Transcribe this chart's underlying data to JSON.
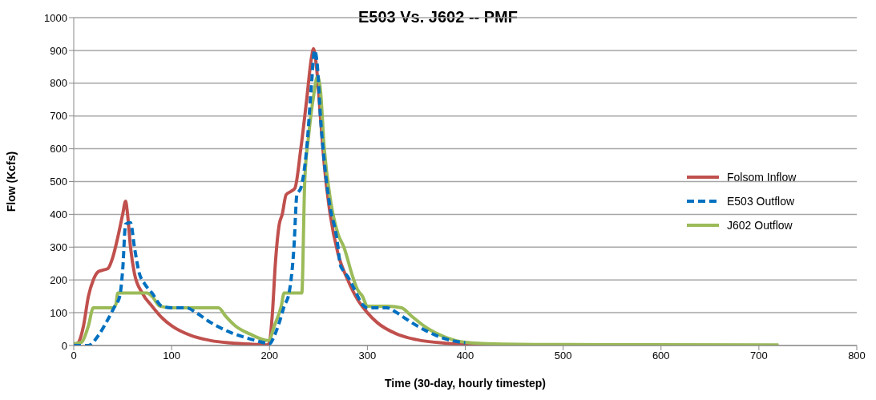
{
  "chart_data": {
    "type": "line",
    "title": "E503 Vs. J602 -- PMF",
    "xlabel": "Time (30-day, hourly timestep)",
    "ylabel": "Flow (Kcfs)",
    "xlim": [
      0,
      800
    ],
    "xticks": [
      0,
      100,
      200,
      300,
      400,
      500,
      600,
      700,
      800
    ],
    "ylim": [
      0,
      1000
    ],
    "yticks": [
      0,
      100,
      200,
      300,
      400,
      500,
      600,
      700,
      800,
      900,
      1000
    ],
    "grid": "y",
    "legend": "right",
    "marker": "none",
    "series": [
      {
        "name": "Folsom Inflow",
        "color": "#c0504d",
        "line_style": "solid",
        "x": [
          0,
          5,
          10,
          15,
          20,
          25,
          30,
          35,
          40,
          45,
          50,
          53,
          55,
          58,
          62,
          70,
          80,
          90,
          100,
          120,
          140,
          160,
          180,
          198,
          200,
          203,
          206,
          210,
          213,
          217,
          222,
          226,
          232,
          238,
          243,
          245,
          248,
          252,
          256,
          262,
          270,
          280,
          290,
          300,
          310,
          330,
          350,
          380,
          420,
          450,
          720
        ],
        "values": [
          0,
          10,
          60,
          150,
          200,
          225,
          230,
          235,
          270,
          330,
          400,
          440,
          400,
          300,
          220,
          160,
          120,
          85,
          60,
          30,
          15,
          8,
          4,
          2,
          10,
          100,
          250,
          370,
          400,
          460,
          470,
          480,
          600,
          750,
          880,
          905,
          850,
          700,
          550,
          400,
          280,
          200,
          140,
          100,
          70,
          35,
          18,
          7,
          2,
          0,
          0
        ]
      },
      {
        "name": "E503 Outflow",
        "color": "#0070c0",
        "line_style": "dashed",
        "x": [
          0,
          15,
          25,
          35,
          42,
          47,
          50,
          53,
          58,
          62,
          67,
          72,
          80,
          90,
          100,
          115,
          125,
          140,
          160,
          180,
          195,
          200,
          205,
          210,
          215,
          220,
          225,
          228,
          232,
          238,
          243,
          246,
          249,
          252,
          256,
          262,
          268,
          270,
          272,
          275,
          280,
          287,
          295,
          300,
          320,
          330,
          340,
          360,
          380,
          400
        ],
        "values": [
          0,
          0,
          30,
          80,
          120,
          150,
          230,
          370,
          375,
          300,
          220,
          190,
          160,
          120,
          115,
          115,
          100,
          70,
          40,
          20,
          8,
          5,
          30,
          70,
          120,
          160,
          300,
          460,
          480,
          600,
          800,
          900,
          850,
          700,
          560,
          420,
          340,
          300,
          250,
          230,
          210,
          170,
          125,
          115,
          115,
          100,
          80,
          45,
          20,
          8
        ]
      },
      {
        "name": "J602 Outflow",
        "color": "#9bbb59",
        "line_style": "solid",
        "x": [
          0,
          8,
          15,
          20,
          40,
          43,
          45,
          75,
          80,
          88,
          100,
          148,
          155,
          165,
          180,
          199,
          205,
          212,
          215,
          233,
          236,
          240,
          245,
          249,
          252,
          256,
          262,
          270,
          276,
          285,
          290,
          295,
          300,
          320,
          335,
          345,
          360,
          380,
          400,
          430,
          500,
          720
        ],
        "values": [
          5,
          10,
          60,
          115,
          115,
          125,
          160,
          160,
          150,
          120,
          115,
          115,
          90,
          60,
          35,
          15,
          60,
          120,
          160,
          160,
          500,
          640,
          760,
          820,
          780,
          600,
          450,
          340,
          300,
          210,
          170,
          150,
          120,
          120,
          115,
          90,
          55,
          25,
          10,
          5,
          3,
          2
        ]
      }
    ]
  }
}
